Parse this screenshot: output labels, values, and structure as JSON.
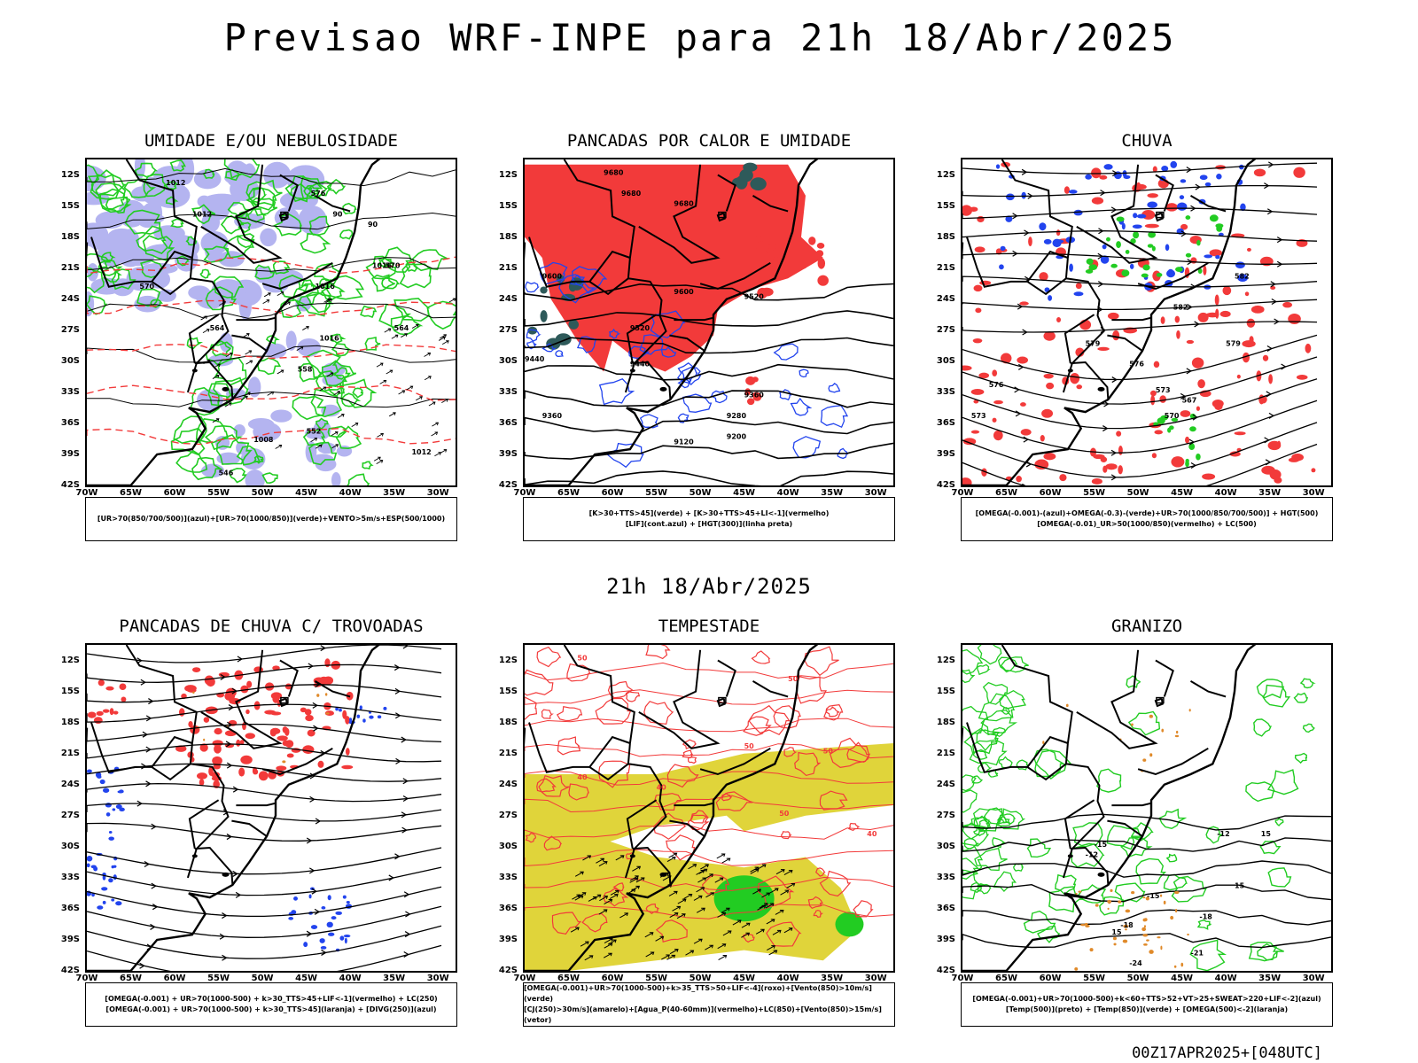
{
  "title": "Previsao WRF-INPE  para 21h 18/Abr/2025",
  "subtitle": "21h 18/Abr/2025",
  "footer": "00Z17APR2025+[048UTC]",
  "lat_ticks": [
    "12S",
    "15S",
    "18S",
    "21S",
    "24S",
    "27S",
    "30S",
    "33S",
    "36S",
    "39S",
    "42S"
  ],
  "lon_ticks": [
    "70W",
    "65W",
    "60W",
    "55W",
    "50W",
    "45W",
    "40W",
    "35W",
    "30W"
  ],
  "colors": {
    "red": "#f23a3a",
    "blue": "#2244ee",
    "green": "#22cc22",
    "lavender": "#b4b4f0",
    "yellow": "#e0d43a",
    "darkteal": "#2e5a5a",
    "orange": "#e08a2a",
    "black": "#000000"
  },
  "panels": [
    {
      "title": "UMIDADE E/OU NEBULOSIDADE",
      "legend": [
        "[UR>70(850/700/500)](azul)+[UR>70(1000/850)](verde)+VENTO>5m/s+ESP(500/1000)"
      ],
      "contour_labels": [
        "1012",
        "1012",
        "1016",
        "1016",
        "1016",
        "1008",
        "1012",
        "576",
        "570",
        "564",
        "558",
        "552",
        "546",
        "570",
        "564",
        "90",
        "90"
      ]
    },
    {
      "title": "PANCADAS POR CALOR E UMIDADE",
      "legend": [
        "[K>30+TTS>45](verde) + [K>30+TTS>45+LI<-1](vermelho)",
        "[LIF](cont.azul) + [HGT(300)](linha preta)"
      ],
      "contour_labels": [
        "9680",
        "9680",
        "9680",
        "9600",
        "9600",
        "9520",
        "9520",
        "9440",
        "9440",
        "9360",
        "9360",
        "9280",
        "9200",
        "9120"
      ]
    },
    {
      "title": "CHUVA",
      "legend": [
        "[OMEGA(-0.001)-(azul)+OMEGA(-0.3)-(verde)+UR>70(1000/850/700/500)] + HGT(500)",
        "[OMEGA(-0.01)_UR>50(1000/850)(vermelho) + LC(500)"
      ],
      "contour_labels": [
        "582",
        "582",
        "579",
        "579",
        "576",
        "576",
        "573",
        "573",
        "570",
        "567"
      ]
    },
    {
      "title": "PANCADAS DE CHUVA C/ TROVOADAS",
      "legend": [
        "[OMEGA(-0.001) + UR>70(1000-500) + k>30_TTS>45+LIF<-1](vermelho) + LC(250)",
        "[OMEGA(-0.001) + UR>70(1000-500) + k>30_TTS>45](laranja) + [DIVG(250)](azul)"
      ],
      "contour_labels": []
    },
    {
      "title": "TEMPESTADE",
      "legend": [
        "[OMEGA(-0.001)+UR>70(1000-500)+k>35_TTS>50+LIF<-4](roxo)+[Vento(850)>10m/s](verde)",
        "[CJ(250)>30m/s](amarelo)+[Agua_P(40-60mm)](vermelho)+LC(850)+[Vento(850)>15m/s](vetor)"
      ],
      "contour_labels": [
        "50",
        "50",
        "50",
        "40",
        "40",
        "50",
        "50",
        "40"
      ]
    },
    {
      "title": "GRANIZO",
      "legend": [
        "[OMEGA(-0.001)+UR>70(1000-500)+k<60+TTS>52+VT>25+SWEAT>220+LIF<-2](azul)",
        "[Temp(500)](preto) + [Temp(850)](verde) + [OMEGA(500)<-2](laranja)"
      ],
      "contour_labels": [
        "-12",
        "-12",
        "-15",
        "-15",
        "-18",
        "-18",
        "-21",
        "-24",
        "15",
        "15",
        "15"
      ]
    }
  ]
}
